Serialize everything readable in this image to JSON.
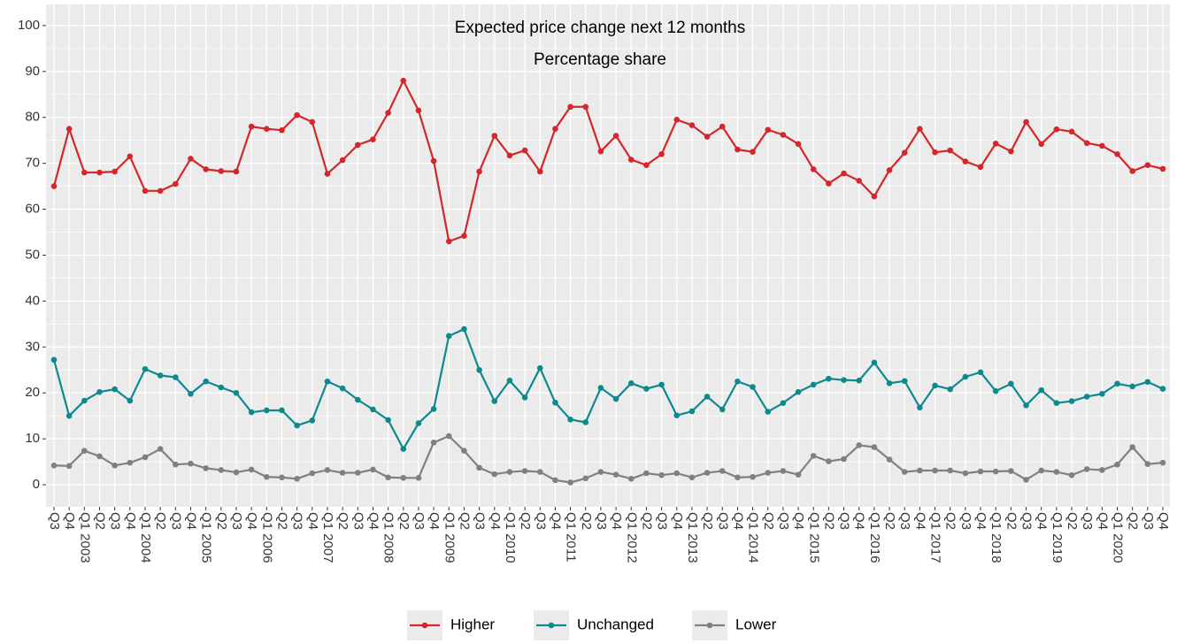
{
  "chart_data": {
    "type": "line",
    "title": "Expected price change next 12 months",
    "subtitle": "Percentage share",
    "categories": [
      "Q3",
      "Q4",
      "Q1 2003",
      "Q2",
      "Q3",
      "Q4",
      "Q1 2004",
      "Q2",
      "Q3",
      "Q4",
      "Q1 2005",
      "Q2",
      "Q3",
      "Q4",
      "Q1 2006",
      "Q2",
      "Q3",
      "Q4",
      "Q1 2007",
      "Q2",
      "Q3",
      "Q4",
      "Q1 2008",
      "Q2",
      "Q3",
      "Q4",
      "Q1 2009",
      "Q2",
      "Q3",
      "Q4",
      "Q1 2010",
      "Q2",
      "Q3",
      "Q4",
      "Q1 2011",
      "Q2",
      "Q3",
      "Q4",
      "Q1 2012",
      "Q2",
      "Q3",
      "Q4",
      "Q1 2013",
      "Q2",
      "Q3",
      "Q4",
      "Q1 2014",
      "Q2",
      "Q3",
      "Q4",
      "Q1 2015",
      "Q2",
      "Q3",
      "Q4",
      "Q1 2016",
      "Q2",
      "Q3",
      "Q4",
      "Q1 2017",
      "Q2",
      "Q3",
      "Q4",
      "Q1 2018",
      "Q2",
      "Q3",
      "Q4",
      "Q1 2019",
      "Q2",
      "Q3",
      "Q4",
      "Q1 2020",
      "Q2",
      "Q3",
      "Q4"
    ],
    "series": [
      {
        "name": "Higher",
        "color": "#d3272b",
        "values": [
          65,
          77.5,
          68,
          68,
          68.2,
          71.5,
          64,
          64,
          65.5,
          71,
          68.7,
          68.3,
          68.2,
          78,
          77.5,
          77.2,
          80.5,
          79,
          67.7,
          70.7,
          74,
          75.2,
          81,
          88,
          81.5,
          70.5,
          53,
          54.2,
          68.2,
          76,
          71.7,
          72.8,
          68.2,
          77.5,
          82.3,
          82.3,
          72.6,
          76,
          70.8,
          69.6,
          72,
          79.5,
          78.3,
          75.8,
          78,
          73,
          72.5,
          77.3,
          76.2,
          74.2,
          68.7,
          65.6,
          67.8,
          66.2,
          62.8,
          68.5,
          72.3,
          77.5,
          72.4,
          72.8,
          70.4,
          69.2,
          74.3,
          72.6,
          79,
          74.2,
          77.4,
          76.9,
          74.4,
          73.8,
          72,
          68.3,
          69.6,
          68.8
        ]
      },
      {
        "name": "Unchanged",
        "color": "#0e8a8f",
        "values": [
          27.2,
          15,
          18.3,
          20.2,
          20.8,
          18.3,
          25.2,
          23.8,
          23.4,
          19.8,
          22.5,
          21.2,
          20,
          15.8,
          16.2,
          16.2,
          12.9,
          14,
          22.5,
          21,
          18.5,
          16.4,
          14.1,
          7.8,
          13.4,
          16.5,
          32.4,
          33.9,
          25,
          18.2,
          22.7,
          19,
          25.4,
          17.9,
          14.2,
          13.6,
          21.1,
          18.7,
          22.1,
          20.9,
          21.8,
          15.1,
          16,
          19.2,
          16.4,
          22.5,
          21.3,
          15.9,
          17.8,
          20.2,
          21.8,
          23.1,
          22.8,
          22.7,
          26.6,
          22.1,
          22.6,
          16.8,
          21.6,
          20.8,
          23.5,
          24.5,
          20.4,
          22,
          17.3,
          20.6,
          17.8,
          18.2,
          19.2,
          19.8,
          22,
          21.4,
          22.4,
          20.9
        ]
      },
      {
        "name": "Lower",
        "color": "#808080",
        "values": [
          4.2,
          4.1,
          7.4,
          6.2,
          4.2,
          4.8,
          6,
          7.8,
          4.4,
          4.6,
          3.6,
          3.2,
          2.7,
          3.3,
          1.7,
          1.6,
          1.3,
          2.5,
          3.2,
          2.6,
          2.6,
          3.3,
          1.6,
          1.5,
          1.5,
          9.2,
          10.6,
          7.4,
          3.7,
          2.3,
          2.8,
          3,
          2.8,
          1,
          0.5,
          1.4,
          2.8,
          2.2,
          1.3,
          2.5,
          2.1,
          2.5,
          1.6,
          2.6,
          3,
          1.6,
          1.7,
          2.6,
          3,
          2.2,
          6.3,
          5.1,
          5.6,
          8.6,
          8.2,
          5.5,
          2.8,
          3.1,
          3.1,
          3.1,
          2.5,
          2.9,
          2.9,
          3,
          1.1,
          3.1,
          2.8,
          2.1,
          3.4,
          3.2,
          4.4,
          8.2,
          4.5,
          4.8
        ]
      }
    ],
    "ylim": [
      -4.8,
      104.6
    ],
    "yticks": [
      0,
      10,
      20,
      30,
      40,
      50,
      60,
      70,
      80,
      90,
      100
    ],
    "grid": true,
    "legend": "bottom"
  }
}
